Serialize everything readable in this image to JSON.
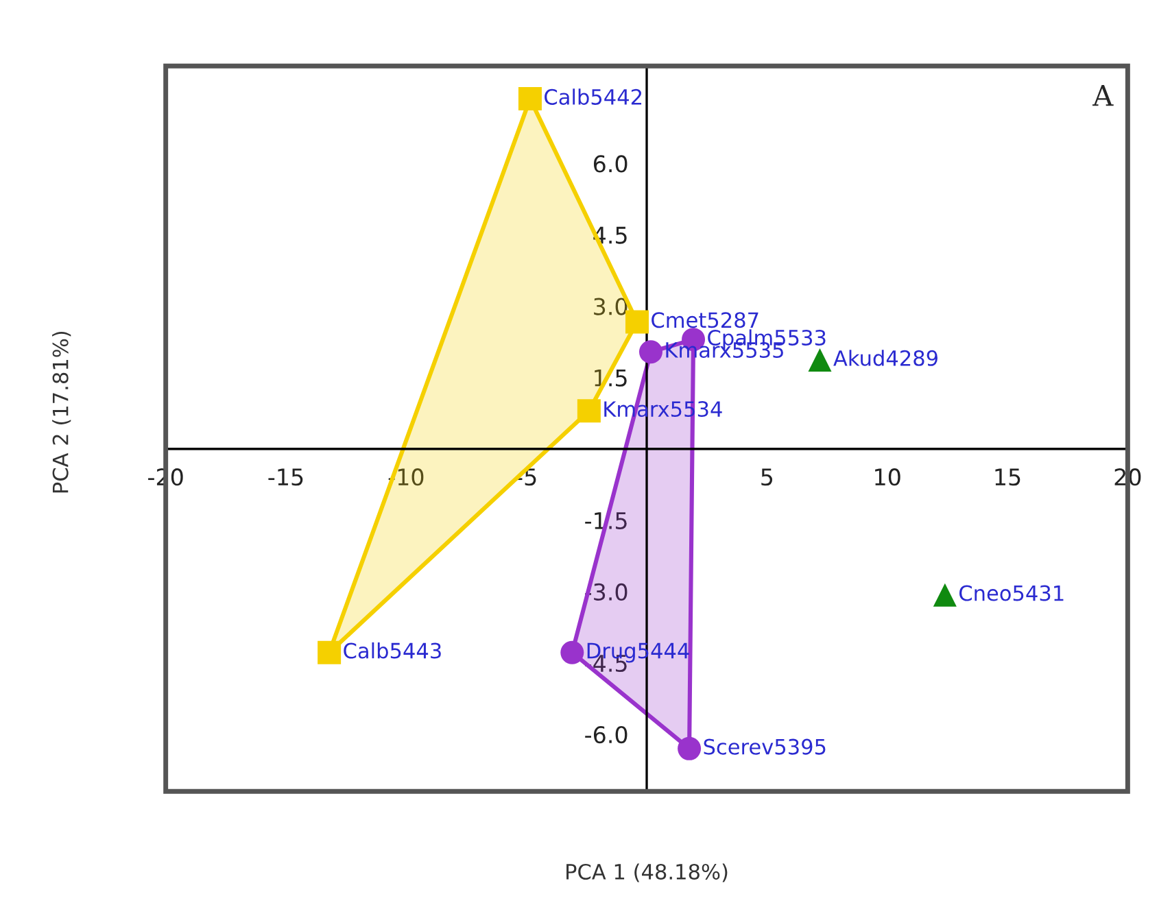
{
  "chart_data": {
    "type": "scatter",
    "xlabel": "PCA 1 (48.18%)",
    "ylabel": "PCA 2 (17.81%)",
    "annotations": [
      "A"
    ],
    "xlim": [
      -20,
      20
    ],
    "ylim": [
      -7.2,
      8.05
    ],
    "xticks": [
      -20,
      -15,
      -10,
      -5,
      5,
      10,
      15,
      20
    ],
    "yticks": [
      {
        "value": -6,
        "label": "-6.0"
      },
      {
        "value": -4.5,
        "label": "-4.5"
      },
      {
        "value": -3,
        "label": "-3.0"
      },
      {
        "value": -1.5,
        "label": "-1.5"
      },
      {
        "value": 1.5,
        "label": "1.5"
      },
      {
        "value": 3,
        "label": "3.0"
      },
      {
        "value": 4.5,
        "label": "4.5"
      },
      {
        "value": 6,
        "label": "6.0"
      }
    ],
    "grid": false,
    "legend": false,
    "series": [
      {
        "color": "#f5d000",
        "marker": "square",
        "x": [
          -4.85,
          -0.4,
          -2.4,
          -13.2
        ],
        "values": [
          7.36,
          2.67,
          0.8,
          -4.28
        ],
        "value_labels": [
          "Calb5442",
          "Cmet5287",
          "Kmarx5534",
          "Calb5443"
        ]
      },
      {
        "color": "#9933cc",
        "marker": "circle",
        "x": [
          0.17,
          1.94,
          1.77,
          -3.1
        ],
        "values": [
          2.04,
          2.3,
          -6.3,
          -4.28
        ],
        "value_labels": [
          "Kmarx5535",
          "Cpalm5533",
          "Scerev5395",
          "Drug5444"
        ]
      },
      {
        "color": "#108a10",
        "marker": "triangle",
        "x": [
          7.2,
          12.4
        ],
        "values": [
          1.87,
          -3.07
        ],
        "value_labels": [
          "Akud4289",
          "Cneo5431"
        ]
      }
    ]
  }
}
